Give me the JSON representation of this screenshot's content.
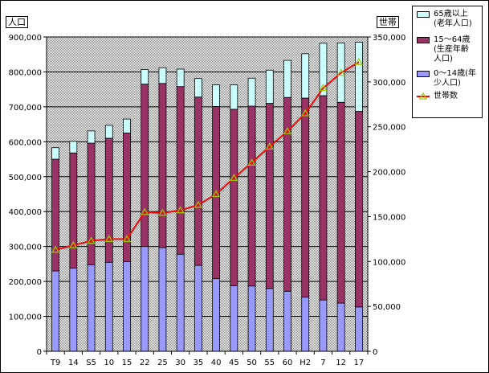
{
  "chart_data": {
    "type": "bar",
    "stacked": true,
    "categories": [
      "T9",
      "14",
      "S5",
      "10",
      "15",
      "22",
      "25",
      "30",
      "35",
      "40",
      "45",
      "50",
      "55",
      "60",
      "H2",
      "7",
      "12",
      "17"
    ],
    "series": [
      {
        "name": "0～14歳(年少人口)",
        "axis": "left",
        "color": "#9999ff",
        "values": [
          230000,
          238000,
          248000,
          255000,
          257000,
          300000,
          297000,
          278000,
          246000,
          208000,
          188000,
          187000,
          180000,
          172000,
          155000,
          147000,
          138000,
          127000
        ]
      },
      {
        "name": "15～64歳(生産年齢人口)",
        "axis": "left",
        "color": "#993366",
        "values": [
          320000,
          330000,
          348000,
          355000,
          368000,
          465000,
          470000,
          480000,
          482000,
          493000,
          505000,
          515000,
          530000,
          555000,
          570000,
          585000,
          575000,
          560000
        ]
      },
      {
        "name": "65歳以上(老年人口)",
        "axis": "left",
        "color": "#ccffff",
        "values": [
          33000,
          33000,
          35000,
          37000,
          40000,
          42000,
          45000,
          50000,
          53000,
          62000,
          70000,
          80000,
          95000,
          106000,
          127000,
          150000,
          170000,
          198000
        ]
      },
      {
        "name": "世帯数",
        "axis": "right",
        "type": "line",
        "color": "#ff0000",
        "marker_color": "#99cc00",
        "values": [
          113000,
          118000,
          123000,
          125000,
          125000,
          155000,
          154000,
          157000,
          163000,
          175000,
          193000,
          210000,
          228000,
          245000,
          265000,
          293000,
          310000,
          322000
        ]
      }
    ],
    "y_left": {
      "label": "人口",
      "ylim": [
        0,
        900000
      ],
      "ticks": [
        "0",
        "100,000",
        "200,000",
        "300,000",
        "400,000",
        "500,000",
        "600,000",
        "700,000",
        "800,000",
        "900,000"
      ]
    },
    "y_right": {
      "label": "世帯",
      "ylim": [
        0,
        350000
      ],
      "ticks": [
        "0",
        "50,000",
        "100,000",
        "150,000",
        "200,000",
        "250,000",
        "300,000",
        "350,000"
      ]
    },
    "grid": true,
    "legend": "right",
    "legend_items": [
      {
        "label": "65歳以上\n(老年人口)",
        "color": "#ccffff",
        "kind": "box"
      },
      {
        "label": "15～64歳\n(生産年齢\n人口)",
        "color": "#993366",
        "kind": "box"
      },
      {
        "label": "0～14歳(年\n少人口)",
        "color": "#9999ff",
        "kind": "box"
      },
      {
        "label": "世帯数",
        "color": "#ff0000",
        "kind": "line"
      }
    ]
  }
}
